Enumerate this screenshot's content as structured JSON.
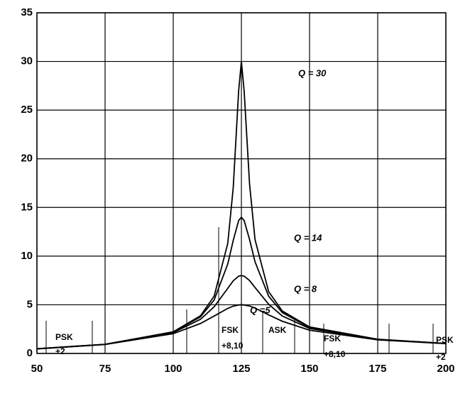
{
  "chart_data": {
    "type": "line",
    "x": [
      50,
      75,
      100,
      110,
      115,
      120,
      122,
      124,
      125,
      126,
      128,
      130,
      135,
      140,
      150,
      175,
      200
    ],
    "series": [
      {
        "name": "Q = 30",
        "color": "#000000",
        "values": [
          0.48,
          0.94,
          2.22,
          3.87,
          5.88,
          11.3,
          17.0,
          27.0,
          30,
          27.0,
          17.4,
          11.7,
          6.35,
          4.36,
          2.72,
          1.46,
          1.03
        ]
      },
      {
        "name": "Q = 14",
        "color": "#000000",
        "values": [
          0.48,
          0.94,
          2.2,
          3.76,
          5.48,
          9.19,
          11.6,
          13.66,
          14,
          13.66,
          11.7,
          9.42,
          5.88,
          4.2,
          2.67,
          1.45,
          1.02
        ]
      },
      {
        "name": "Q = 8",
        "color": "#000000",
        "values": [
          0.48,
          0.93,
          2.14,
          3.51,
          4.79,
          6.69,
          7.46,
          7.94,
          8,
          7.94,
          7.49,
          6.78,
          5.05,
          3.85,
          2.57,
          1.43,
          1.02
        ]
      },
      {
        "name": "Q =5",
        "color": "#000000",
        "values": [
          0.47,
          0.92,
          2.03,
          3.08,
          3.84,
          4.63,
          4.86,
          4.98,
          5,
          4.98,
          4.87,
          4.66,
          3.96,
          3.31,
          2.39,
          1.4,
          1.0
        ]
      }
    ],
    "annotations": [
      "PSK",
      "+2",
      "FSK",
      "+8,10",
      "ASK",
      "FSK",
      "+8,10",
      "PSK",
      "+2"
    ],
    "xlim": [
      50,
      200
    ],
    "xticks": [
      50,
      75,
      100,
      125,
      150,
      175,
      200
    ],
    "ylim": [
      0,
      35
    ],
    "yticks": [
      0,
      5,
      10,
      15,
      20,
      25,
      30,
      35
    ],
    "grid": true
  }
}
